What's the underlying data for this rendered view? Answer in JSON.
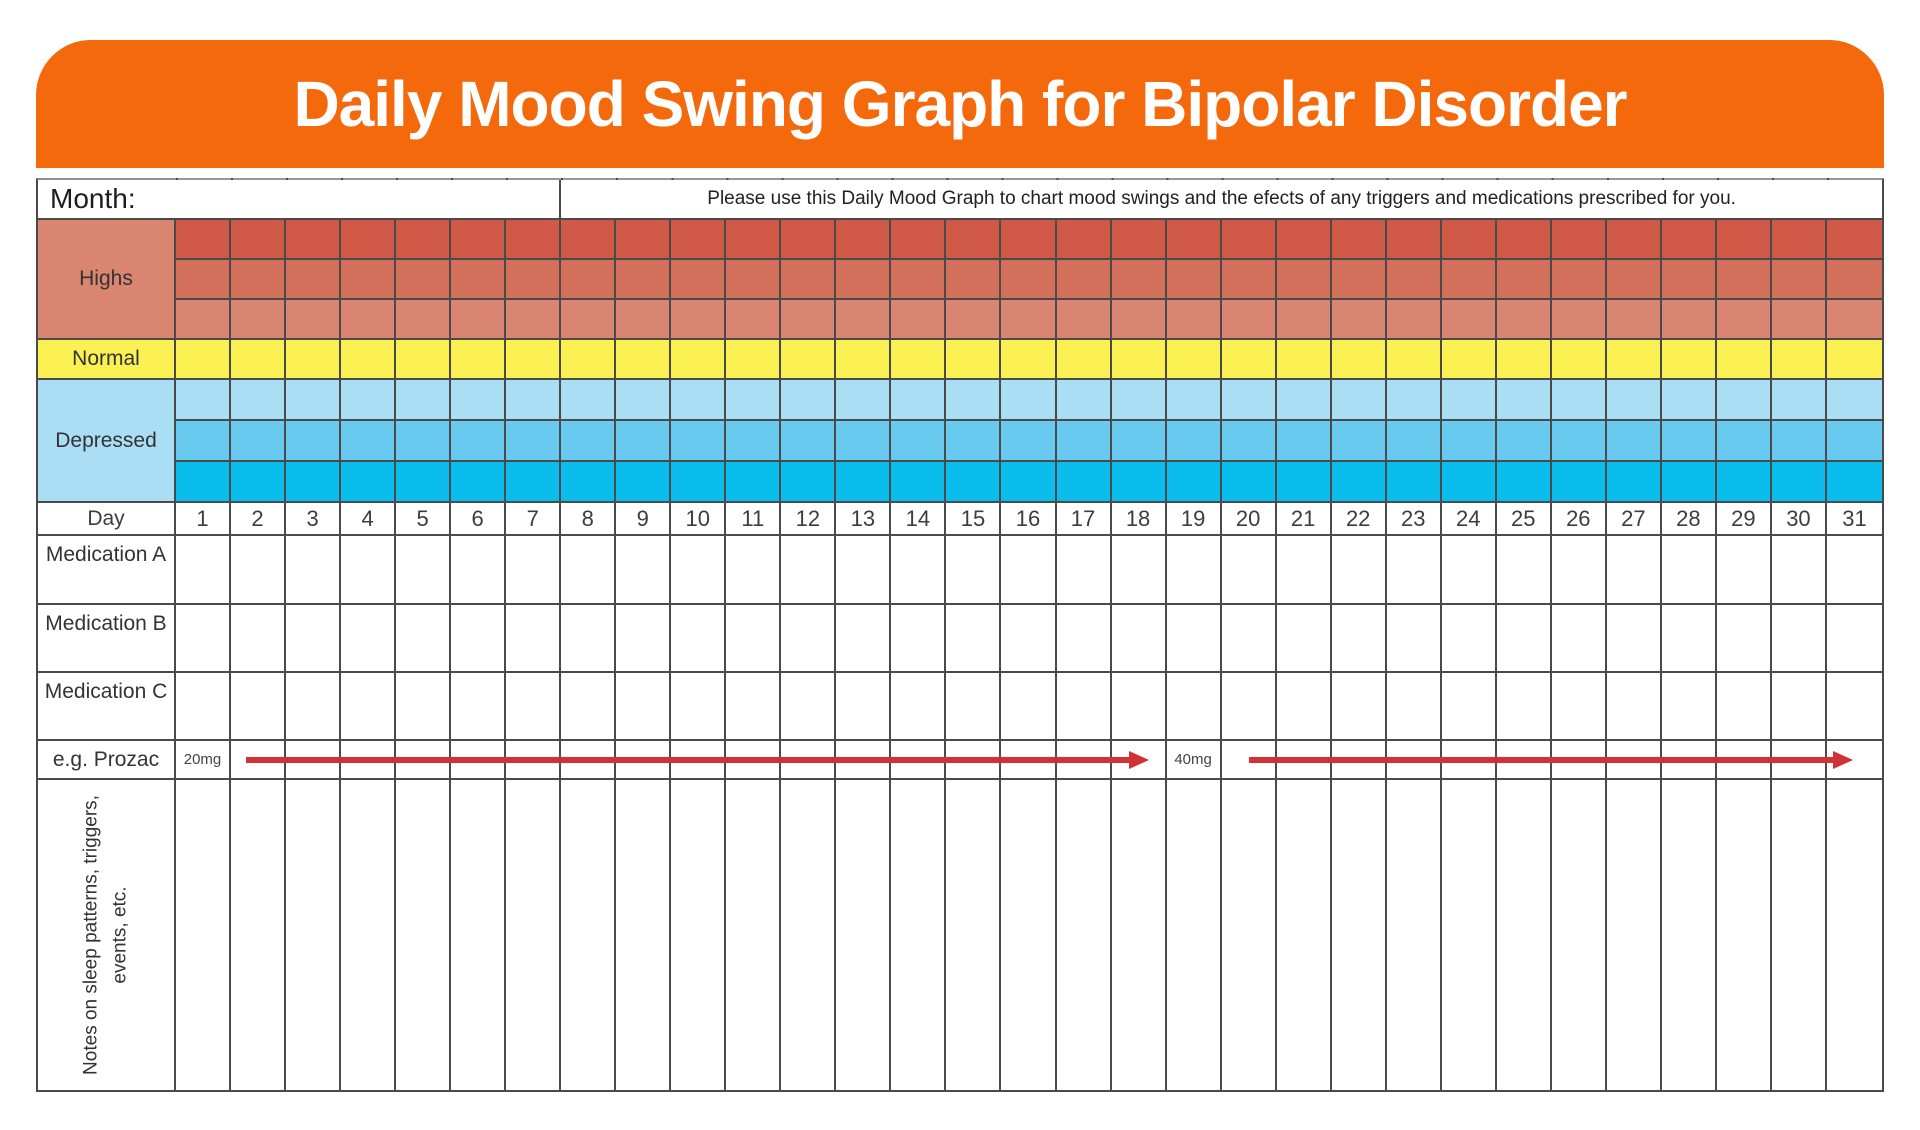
{
  "title": "Daily Mood Swing Graph for Bipolar Disorder",
  "header": {
    "month_label": "Month:",
    "instruction": "Please use this Daily Mood Graph to chart mood swings and the efects of any triggers and medications prescribed for you."
  },
  "days": [
    "1",
    "2",
    "3",
    "4",
    "5",
    "6",
    "7",
    "8",
    "9",
    "10",
    "11",
    "12",
    "13",
    "14",
    "15",
    "16",
    "17",
    "18",
    "19",
    "20",
    "21",
    "22",
    "23",
    "24",
    "25",
    "26",
    "27",
    "28",
    "29",
    "30",
    "31"
  ],
  "day_row_label": "Day",
  "bands": [
    {
      "label": "Highs",
      "label_bg": "#D98570",
      "row_colors": [
        "#CF5846",
        "#D3705B",
        "#D98571"
      ]
    },
    {
      "label": "Normal",
      "label_bg": "#FBF152",
      "row_colors": [
        "#FBF152"
      ]
    },
    {
      "label": "Depressed",
      "label_bg": "#A9DEF5",
      "row_colors": [
        "#A9DEF5",
        "#67CAEE",
        "#0ABDEC"
      ]
    }
  ],
  "medication_rows": [
    "Medication A",
    "Medication B",
    "Medication C"
  ],
  "example_row": {
    "label": "e.g. Prozac",
    "annotations": [
      {
        "day": 1,
        "text": "20mg"
      },
      {
        "day": 19,
        "text": "40mg"
      }
    ],
    "arrows": [
      {
        "start_day": 2.27,
        "end_day": 18.7
      },
      {
        "start_day": 20.5,
        "end_day": 31.5
      }
    ]
  },
  "notes_label_lines": [
    "Notes on sleep patterns, triggers,",
    "events, etc."
  ],
  "colors": {
    "banner_orange": "#F5690D",
    "grid_line": "#4A4A4A",
    "arrow_red": "#D03238",
    "high_dark": "#CF5846",
    "high_mid": "#D3705B",
    "high_light": "#D98571",
    "normal_yellow": "#FBF152",
    "depressed_light": "#A9DEF5",
    "depressed_mid": "#67CAEE",
    "depressed_dark": "#0ABDEC"
  }
}
